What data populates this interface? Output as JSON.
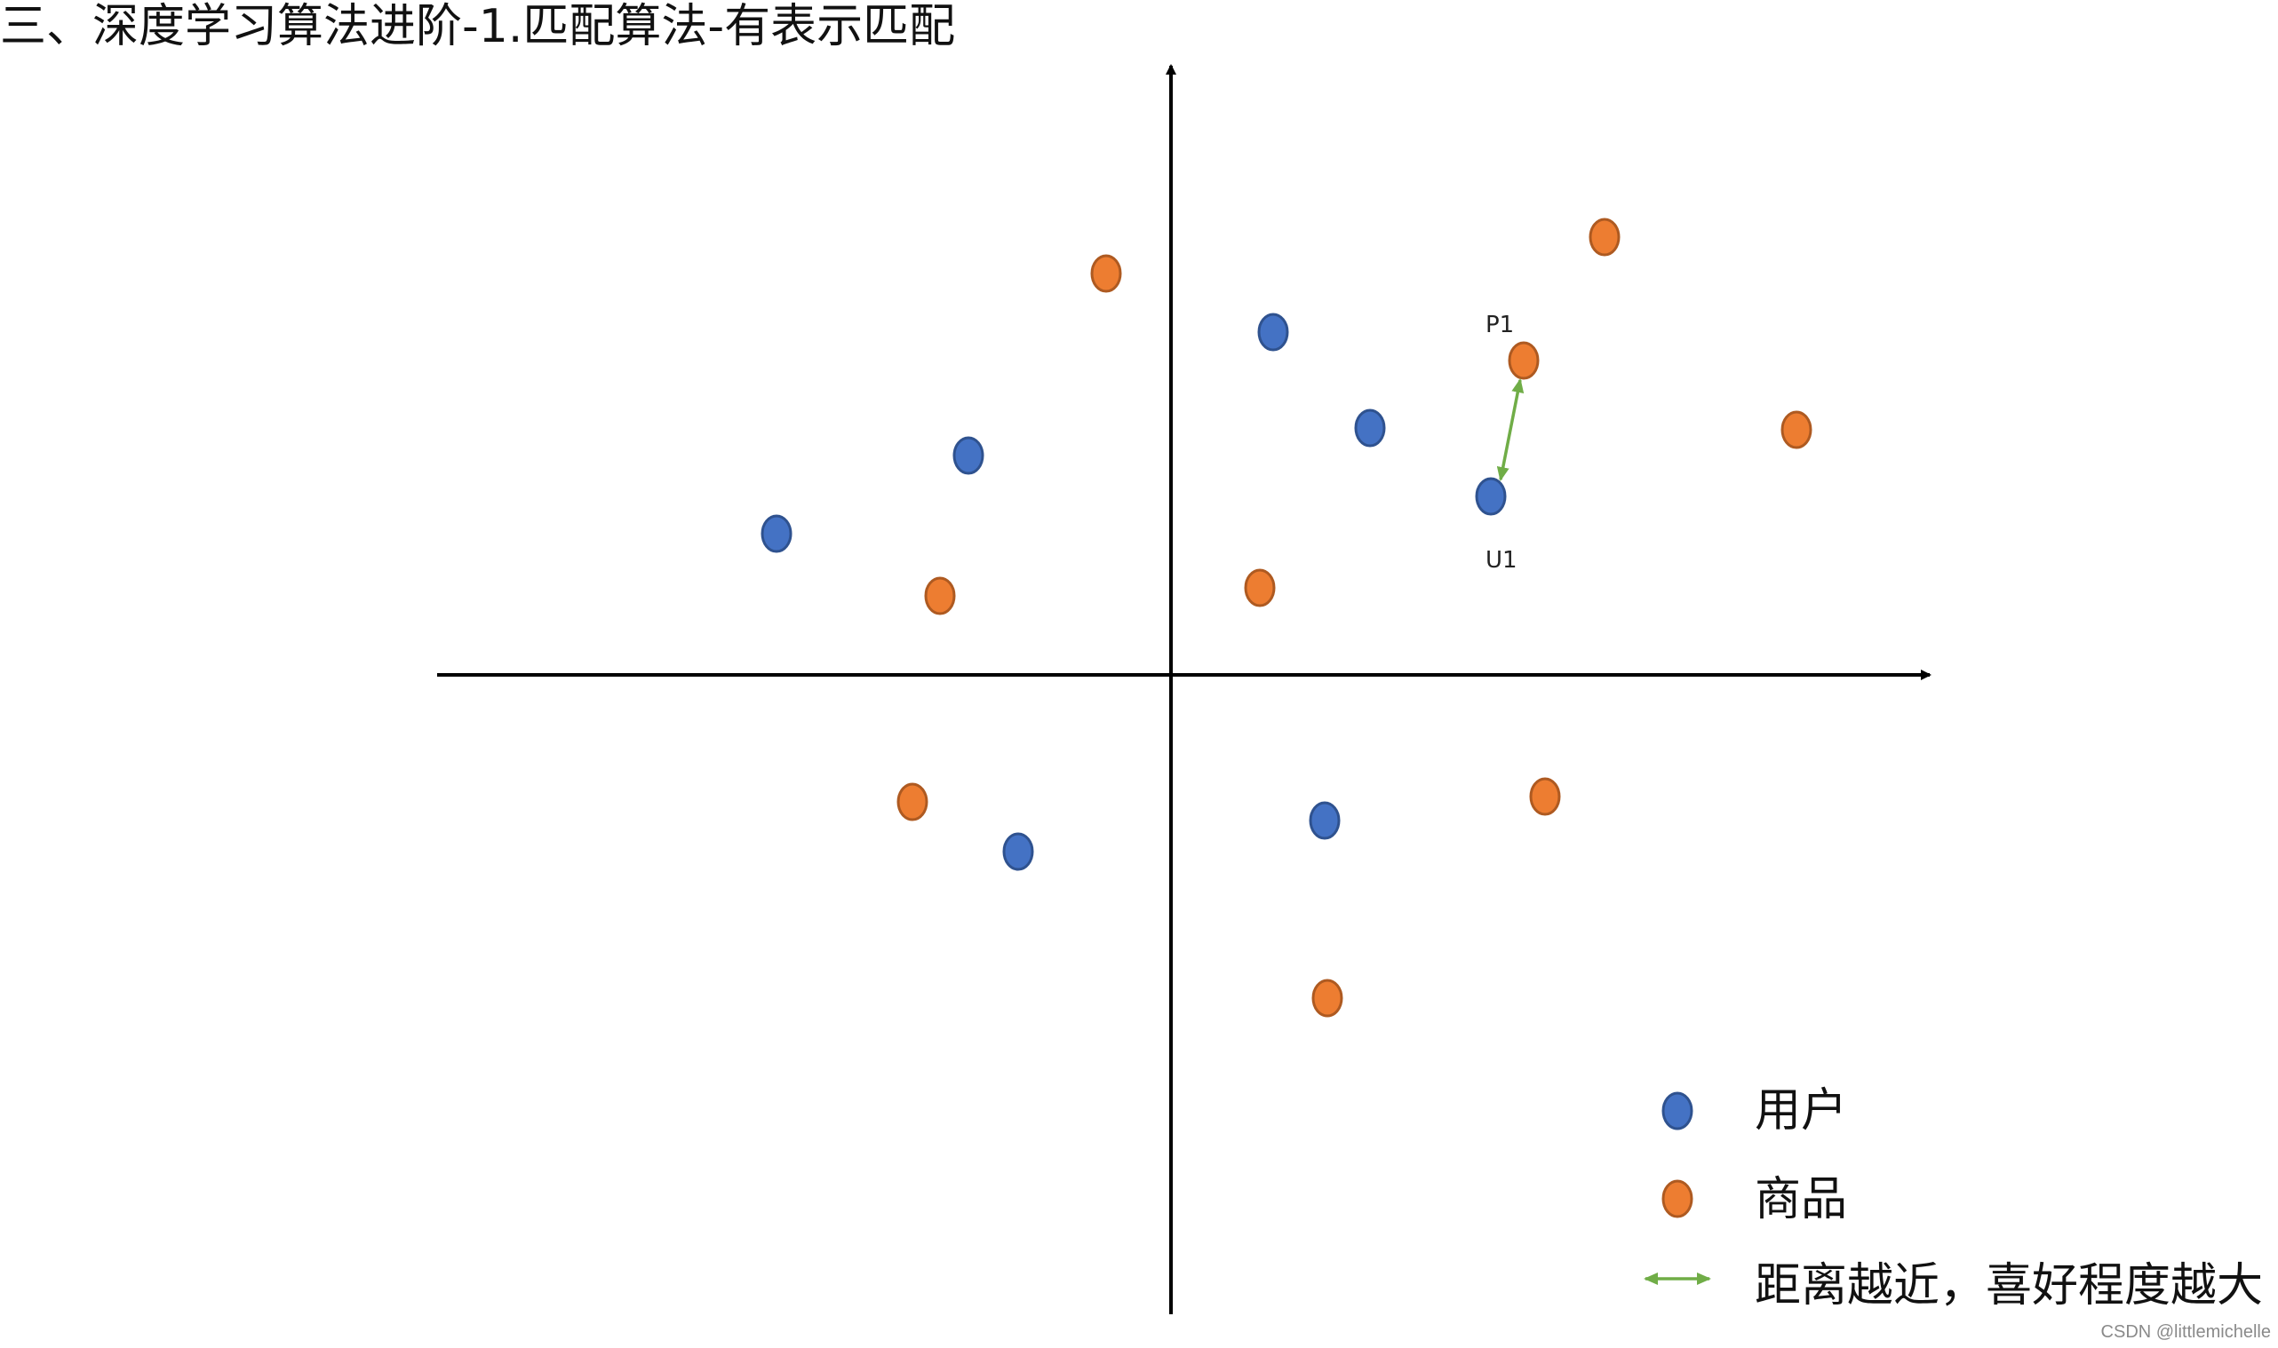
{
  "title": "三、深度学习算法进阶-1.匹配算法-有表示匹配",
  "colors": {
    "user": "#4472C4",
    "user_stroke": "#2F528F",
    "product": "#ED7D31",
    "product_stroke": "#AE5A21",
    "arrow": "#70AD47",
    "axis": "#000000"
  },
  "labels": {
    "p1": "P1",
    "u1": "U1"
  },
  "legend": {
    "user": "用户",
    "product": "商品",
    "distance": "距离越近，喜好程度越大"
  },
  "watermark": "CSDN @littlemichelle"
}
